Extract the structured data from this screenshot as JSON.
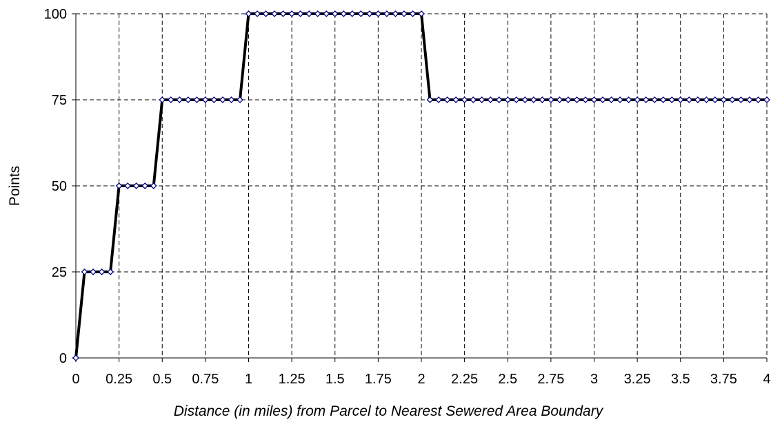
{
  "chart_data": {
    "type": "line",
    "title": "",
    "xlabel": "Distance (in miles) from Parcel to Nearest Sewered Area Boundary",
    "ylabel": "Points",
    "xlim": [
      0,
      4
    ],
    "ylim": [
      0,
      100
    ],
    "x_ticks": [
      "0",
      "0.25",
      "0.5",
      "0.75",
      "1",
      "1.25",
      "1.5",
      "1.75",
      "2",
      "2.25",
      "2.5",
      "2.75",
      "3",
      "3.25",
      "3.5",
      "3.75",
      "4"
    ],
    "y_ticks": [
      "0",
      "25",
      "50",
      "75",
      "100"
    ],
    "grid": true,
    "legend": "none",
    "series": [
      {
        "line_color": "#000000",
        "marker_stroke": "#000080",
        "marker_fill": "#ffffff",
        "marker": "diamond",
        "x": [
          0,
          0.05,
          0.1,
          0.15,
          0.2,
          0.25,
          0.3,
          0.35,
          0.4,
          0.45,
          0.5,
          0.55,
          0.6,
          0.65,
          0.7,
          0.75,
          0.8,
          0.85,
          0.9,
          0.95,
          1.0,
          1.05,
          1.1,
          1.15,
          1.2,
          1.25,
          1.3,
          1.35,
          1.4,
          1.45,
          1.5,
          1.55,
          1.6,
          1.65,
          1.7,
          1.75,
          1.8,
          1.85,
          1.9,
          1.95,
          2.0,
          2.05,
          2.1,
          2.15,
          2.2,
          2.25,
          2.3,
          2.35,
          2.4,
          2.45,
          2.5,
          2.55,
          2.6,
          2.65,
          2.7,
          2.75,
          2.8,
          2.85,
          2.9,
          2.95,
          3.0,
          3.05,
          3.1,
          3.15,
          3.2,
          3.25,
          3.3,
          3.35,
          3.4,
          3.45,
          3.5,
          3.55,
          3.6,
          3.65,
          3.7,
          3.75,
          3.8,
          3.85,
          3.9,
          3.95,
          4.0
        ],
        "y": [
          0,
          25,
          25,
          25,
          25,
          50,
          50,
          50,
          50,
          50,
          75,
          75,
          75,
          75,
          75,
          75,
          75,
          75,
          75,
          75,
          100,
          100,
          100,
          100,
          100,
          100,
          100,
          100,
          100,
          100,
          100,
          100,
          100,
          100,
          100,
          100,
          100,
          100,
          100,
          100,
          100,
          75,
          75,
          75,
          75,
          75,
          75,
          75,
          75,
          75,
          75,
          75,
          75,
          75,
          75,
          75,
          75,
          75,
          75,
          75,
          75,
          75,
          75,
          75,
          75,
          75,
          75,
          75,
          75,
          75,
          75,
          75,
          75,
          75,
          75,
          75,
          75,
          75,
          75,
          75,
          75
        ]
      }
    ]
  }
}
